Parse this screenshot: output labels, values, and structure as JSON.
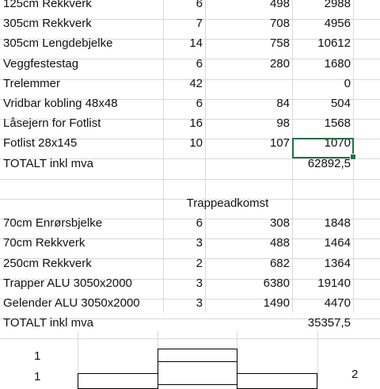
{
  "section1": {
    "rows": [
      {
        "name": "125cm Rekkverk",
        "qty": "6",
        "price": "498",
        "total": "2988"
      },
      {
        "name": "305cm Rekkverk",
        "qty": "7",
        "price": "708",
        "total": "4956"
      },
      {
        "name": "305cm Lengdebjelke",
        "qty": "14",
        "price": "758",
        "total": "10612"
      },
      {
        "name": "Veggfestestag",
        "qty": "6",
        "price": "280",
        "total": "1680"
      },
      {
        "name": "Trelemmer",
        "qty": "42",
        "price": "",
        "total": "0"
      },
      {
        "name": "Vridbar kobling 48x48",
        "qty": "6",
        "price": "84",
        "total": "504"
      },
      {
        "name": "Låsejern for Fotlist",
        "qty": "16",
        "price": "98",
        "total": "1568"
      },
      {
        "name": "Fotlist 28x145",
        "qty": "10",
        "price": "107",
        "total": "1070"
      }
    ],
    "total_label": "TOTALT inkl mva",
    "total_value": "62892,5"
  },
  "section2": {
    "title": "Trappeadkomst",
    "rows": [
      {
        "name": "70cm Enrørsbjelke",
        "qty": "6",
        "price": "308",
        "total": "1848"
      },
      {
        "name": "70cm Rekkverk",
        "qty": "3",
        "price": "488",
        "total": "1464"
      },
      {
        "name": "250cm Rekkverk",
        "qty": "2",
        "price": "682",
        "total": "1364"
      },
      {
        "name": "Trapper ALU 3050x2000",
        "qty": "3",
        "price": "6380",
        "total": "19140"
      },
      {
        "name": "Gelender ALU 3050x2000",
        "qty": "3",
        "price": "1490",
        "total": "4470"
      }
    ],
    "total_label": "TOTALT inkl mva",
    "total_value": "35357,5"
  },
  "diagram": {
    "label_a": "1",
    "label_b": "1",
    "label_c": "2"
  }
}
